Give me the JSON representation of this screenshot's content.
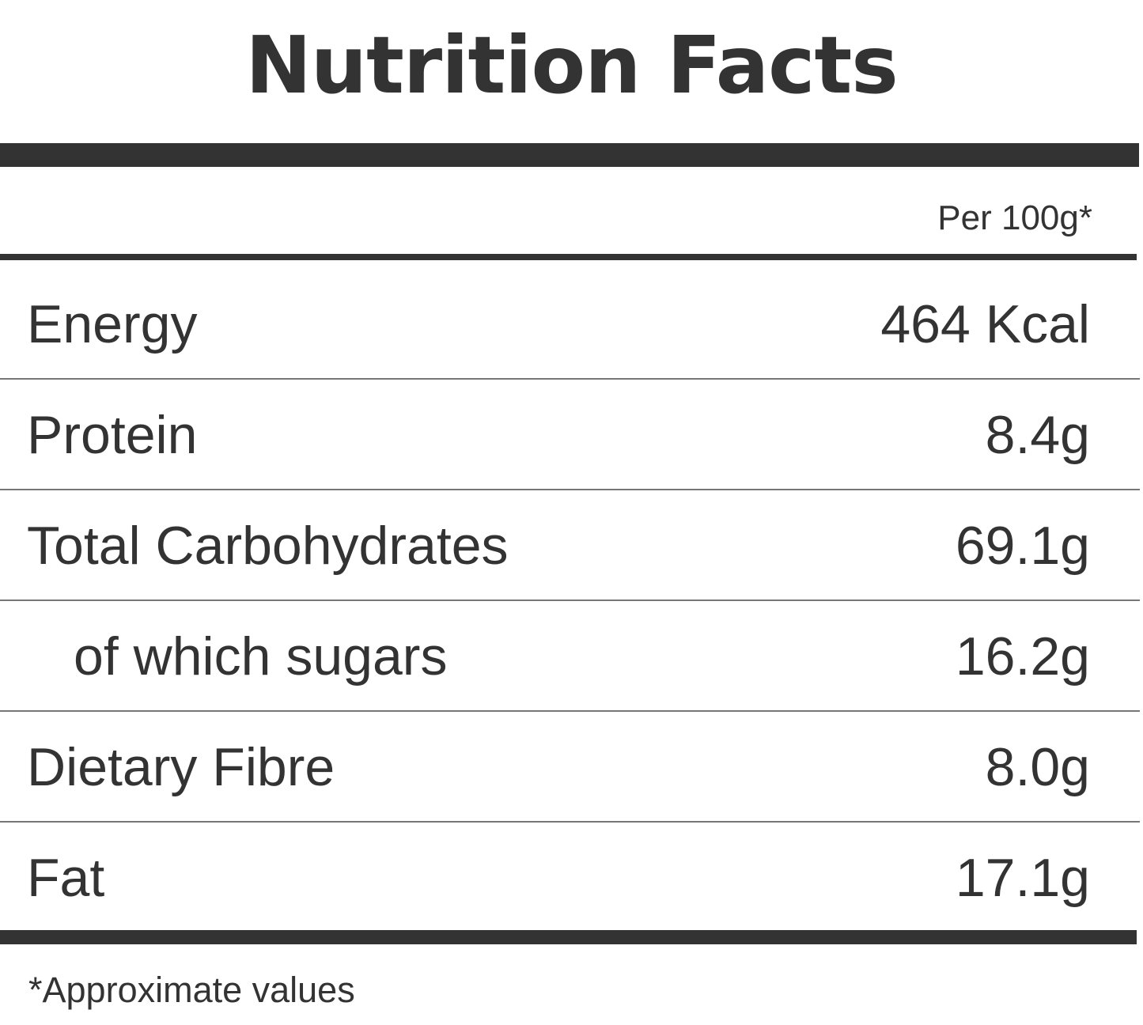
{
  "title": "Nutrition Facts",
  "column_header": "Per 100g*",
  "rows": [
    {
      "label": "Energy",
      "value": "464 Kcal"
    },
    {
      "label": "Protein",
      "value": "8.4g"
    },
    {
      "label": "Total Carbohydrates",
      "value": "69.1g"
    },
    {
      "label": "of which sugars",
      "value": "16.2g",
      "indented": true
    },
    {
      "label": "Dietary Fibre",
      "value": "8.0g"
    },
    {
      "label": "Fat",
      "value": "17.1g"
    }
  ],
  "footnote": "*Approximate values",
  "colors": {
    "text": "#333333",
    "rule": "#333333",
    "divider": "#777777",
    "background": "#ffffff"
  }
}
